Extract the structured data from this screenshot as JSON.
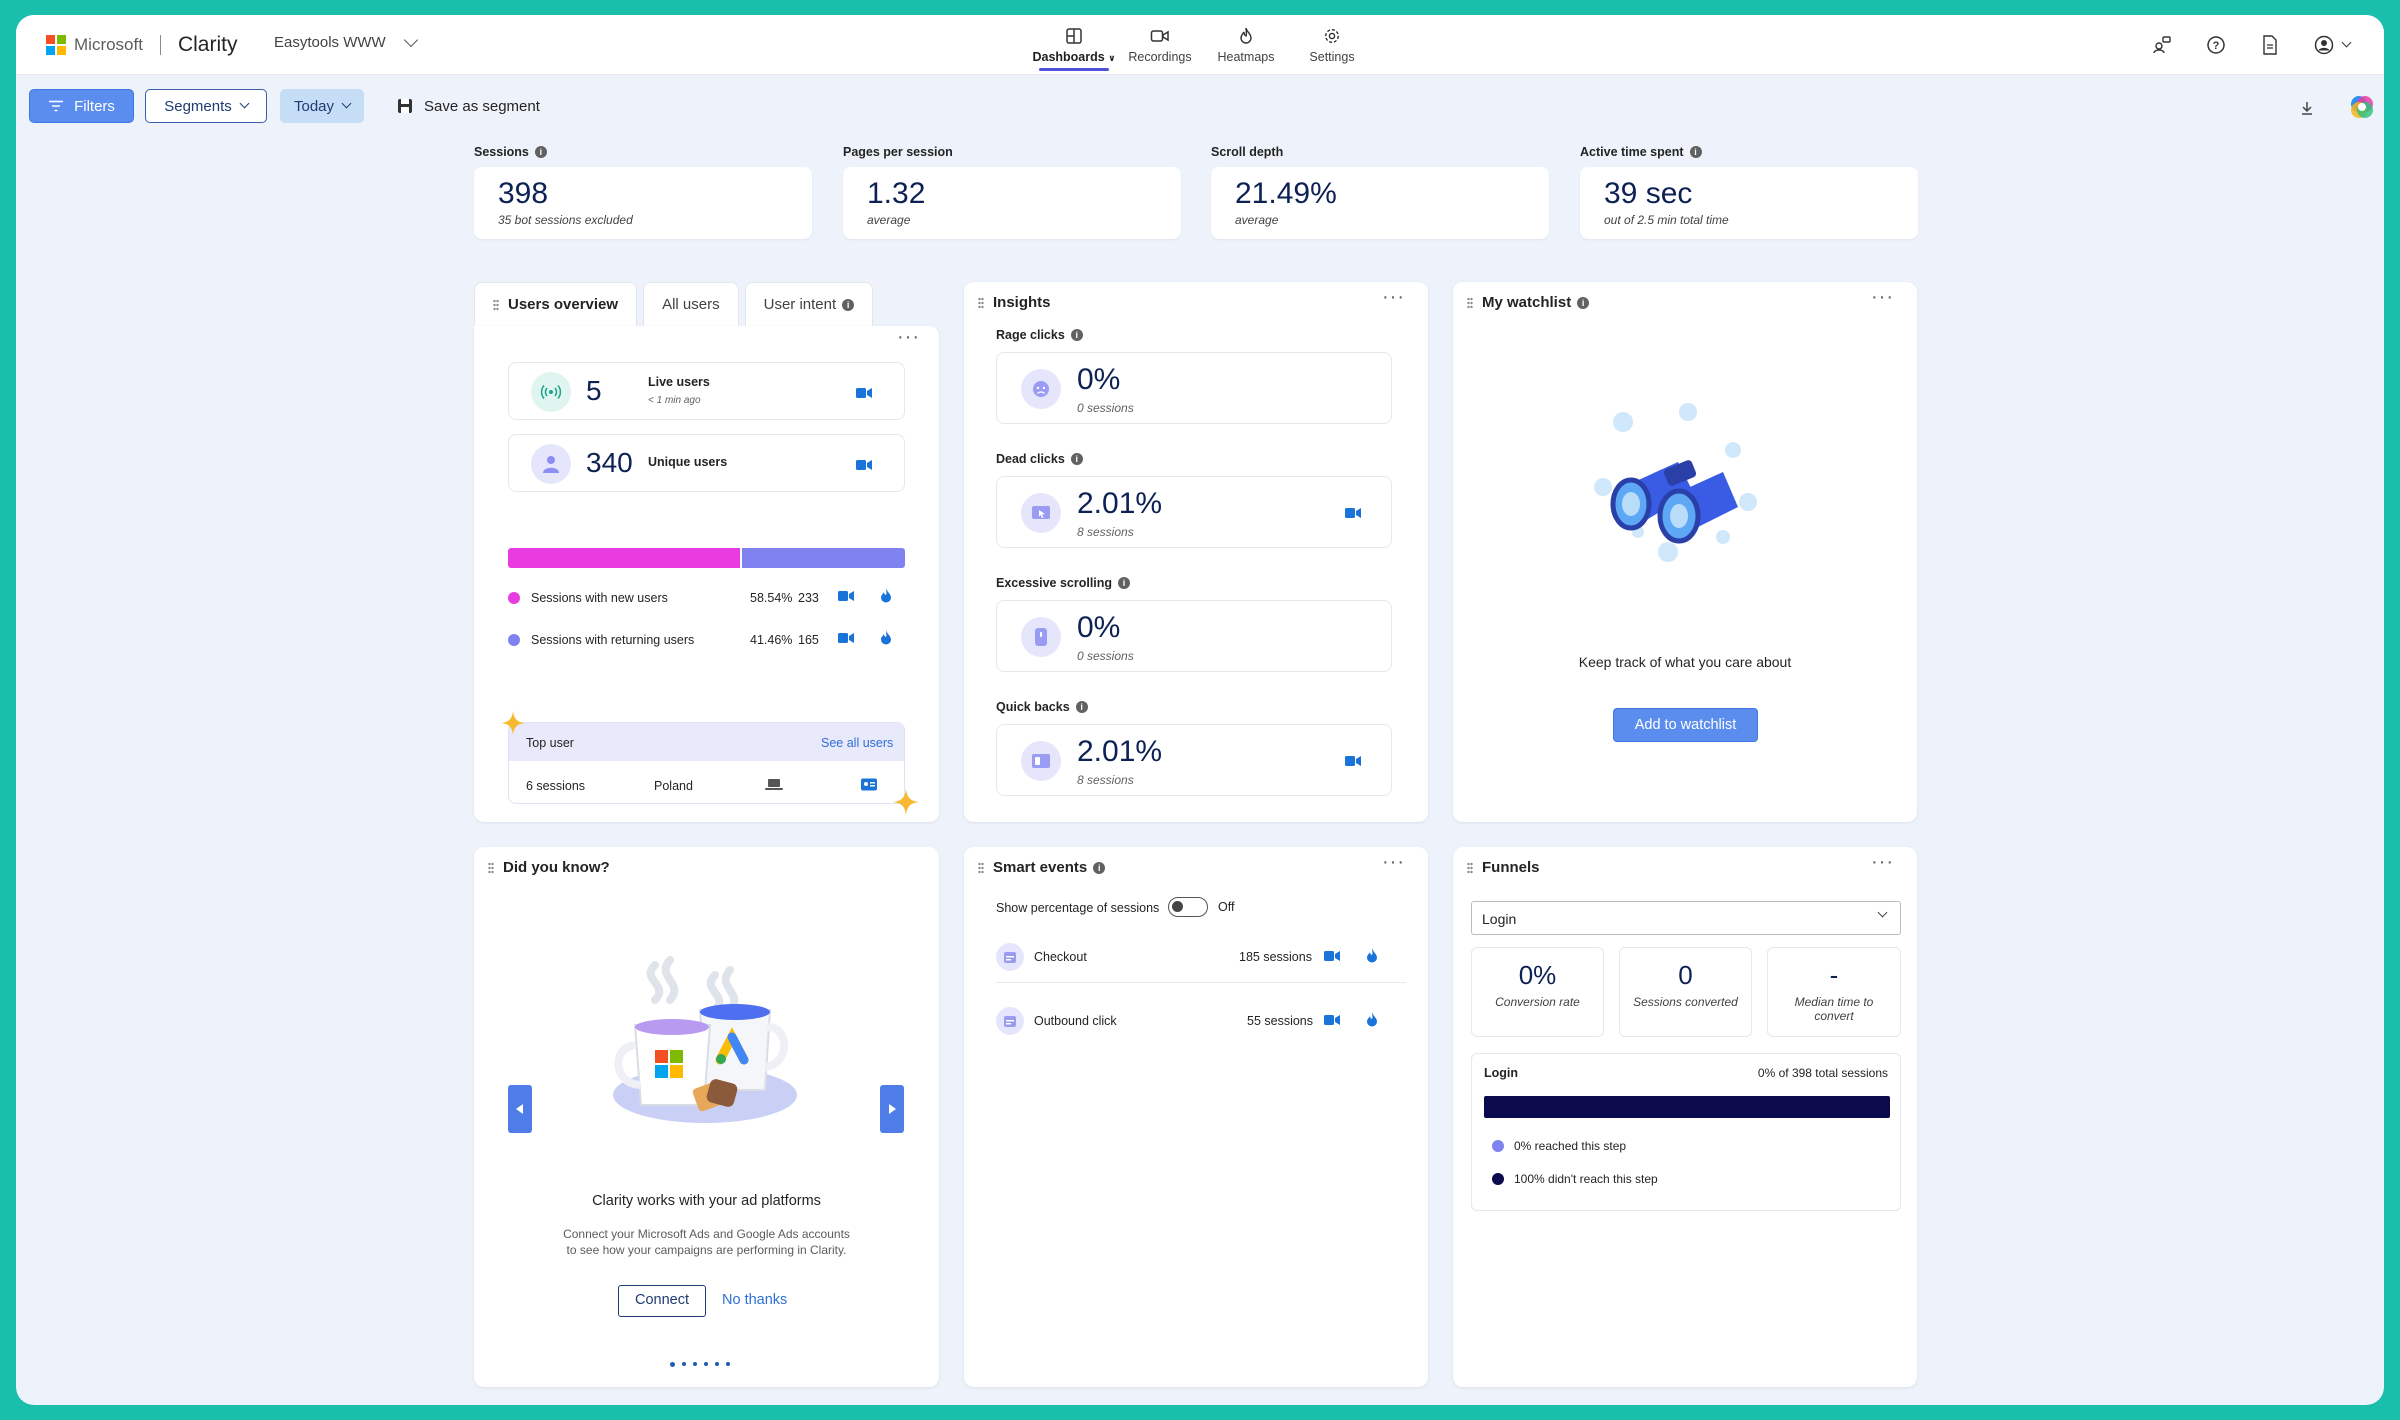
{
  "app": {
    "brand": "Microsoft",
    "name": "Clarity",
    "project": "Easytools WWW"
  },
  "nav": {
    "tabs": [
      {
        "label": "Dashboards",
        "icon": "dashboard-icon",
        "active": true
      },
      {
        "label": "Recordings",
        "icon": "video-icon",
        "active": false
      },
      {
        "label": "Heatmaps",
        "icon": "flame-icon",
        "active": false
      },
      {
        "label": "Settings",
        "icon": "gear-icon",
        "active": false
      }
    ],
    "right_icons": [
      "share-people-icon",
      "help-icon",
      "document-icon",
      "account-icon"
    ]
  },
  "filterbar": {
    "filters": "Filters",
    "segments": "Segments",
    "today": "Today",
    "save_segment": "Save as segment"
  },
  "metrics": [
    {
      "label": "Sessions",
      "value": "398",
      "sub": "35 bot sessions excluded",
      "info": true
    },
    {
      "label": "Pages per session",
      "value": "1.32",
      "sub": "average",
      "info": false
    },
    {
      "label": "Scroll depth",
      "value": "21.49%",
      "sub": "average",
      "info": false
    },
    {
      "label": "Active time spent",
      "value": "39 sec",
      "sub": "out of 2.5 min total time",
      "info": true
    }
  ],
  "users_overview": {
    "tabs": [
      "Users overview",
      "All users",
      "User intent"
    ],
    "live_users": {
      "value": "5",
      "label": "Live users",
      "sub": "< 1 min ago"
    },
    "unique_users": {
      "value": "340",
      "label": "Unique users"
    },
    "split": {
      "new_pct": 0.5854,
      "new_color": "#e93ce0",
      "returning_color": "#7f82ef"
    },
    "rows": [
      {
        "label": "Sessions with new users",
        "pct": "58.54%",
        "count": "233"
      },
      {
        "label": "Sessions with returning users",
        "pct": "41.46%",
        "count": "165"
      }
    ],
    "top_user": {
      "title": "Top user",
      "link": "See all users",
      "sessions": "6 sessions",
      "country": "Poland"
    }
  },
  "insights": {
    "title": "Insights",
    "items": [
      {
        "label": "Rage clicks",
        "value": "0%",
        "sub": "0 sessions",
        "camera": false
      },
      {
        "label": "Dead clicks",
        "value": "2.01%",
        "sub": "8 sessions",
        "camera": true
      },
      {
        "label": "Excessive scrolling",
        "value": "0%",
        "sub": "0 sessions",
        "camera": false
      },
      {
        "label": "Quick backs",
        "value": "2.01%",
        "sub": "8 sessions",
        "camera": true
      }
    ]
  },
  "watchlist": {
    "title": "My watchlist",
    "message": "Keep track of what you care about",
    "button": "Add to watchlist"
  },
  "did_you_know": {
    "title": "Did you know?",
    "heading": "Clarity works with your ad platforms",
    "body_line1": "Connect your Microsoft Ads and Google Ads accounts",
    "body_line2": "to see how your campaigns are performing in Clarity.",
    "connect": "Connect",
    "no_thanks": "No thanks",
    "pages": 6,
    "active_page": 1
  },
  "smart_events": {
    "title": "Smart events",
    "toggle_label": "Show percentage of sessions",
    "toggle_state": "Off",
    "events": [
      {
        "name": "Checkout",
        "sessions": "185 sessions"
      },
      {
        "name": "Outbound click",
        "sessions": "55 sessions"
      }
    ]
  },
  "funnels": {
    "title": "Funnels",
    "selected": "Login",
    "stats": [
      {
        "value": "0%",
        "label": "Conversion rate"
      },
      {
        "value": "0",
        "label": "Sessions converted"
      },
      {
        "value": "-",
        "label": "Median time to convert"
      }
    ],
    "step": {
      "name": "Login",
      "summary": "0% of 398 total sessions",
      "reached_fraction": 0
    },
    "legend": [
      {
        "label": "0% reached this step",
        "color": "#7f82ef"
      },
      {
        "label": "100% didn't reach this step",
        "color": "#0a0a4d"
      }
    ]
  },
  "colors": {
    "accent": "#4f52d9",
    "primary_button": "#5b8def",
    "navy_value": "#0d2155",
    "camera": "#1a73d9",
    "frame": "#19bfaa"
  }
}
